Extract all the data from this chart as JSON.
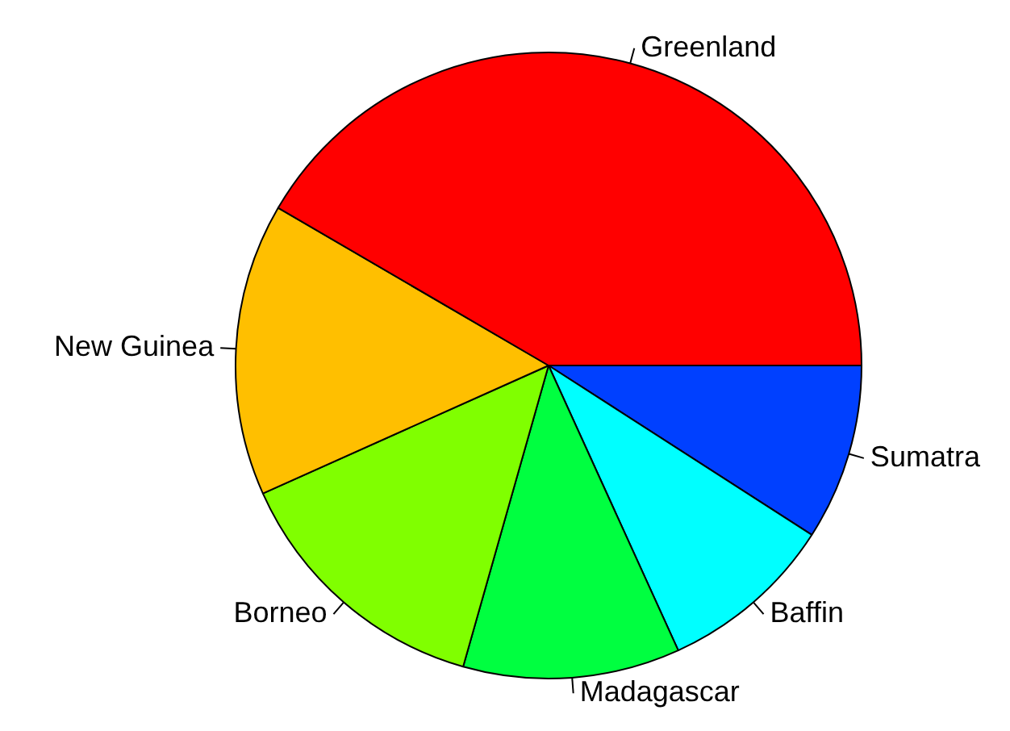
{
  "chart_data": {
    "type": "pie",
    "categories": [
      "Greenland",
      "New Guinea",
      "Borneo",
      "Madagascar",
      "Baffin",
      "Sumatra"
    ],
    "values": [
      41.6,
      15.1,
      13.9,
      11.2,
      9.1,
      9.1
    ],
    "colors": [
      "#ff0000",
      "#ffbf00",
      "#80ff00",
      "#00ff40",
      "#00ffff",
      "#0040ff"
    ],
    "legend": false
  }
}
